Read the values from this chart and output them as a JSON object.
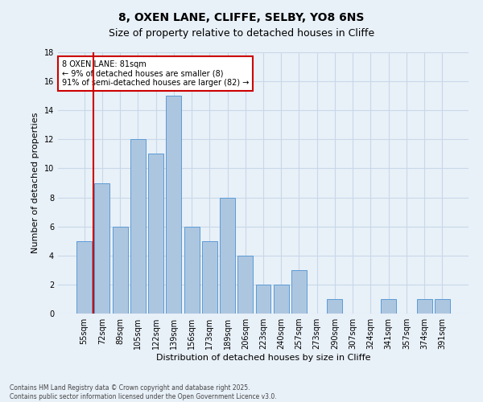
{
  "title_line1": "8, OXEN LANE, CLIFFE, SELBY, YO8 6NS",
  "title_line2": "Size of property relative to detached houses in Cliffe",
  "xlabel": "Distribution of detached houses by size in Cliffe",
  "ylabel": "Number of detached properties",
  "categories": [
    "55sqm",
    "72sqm",
    "89sqm",
    "105sqm",
    "122sqm",
    "139sqm",
    "156sqm",
    "173sqm",
    "189sqm",
    "206sqm",
    "223sqm",
    "240sqm",
    "257sqm",
    "273sqm",
    "290sqm",
    "307sqm",
    "324sqm",
    "341sqm",
    "357sqm",
    "374sqm",
    "391sqm"
  ],
  "values": [
    5,
    9,
    6,
    12,
    11,
    15,
    6,
    5,
    8,
    4,
    2,
    2,
    3,
    0,
    1,
    0,
    0,
    1,
    0,
    1,
    1
  ],
  "bar_color": "#adc6e0",
  "bar_edge_color": "#5b9bd5",
  "grid_color": "#c8d8e8",
  "background_color": "#e8f0f8",
  "vline_x_index": 1,
  "vline_color": "#cc0000",
  "annotation_text": "8 OXEN LANE: 81sqm\n← 9% of detached houses are smaller (8)\n91% of semi-detached houses are larger (82) →",
  "annotation_box_color": "#ffffff",
  "annotation_box_edge": "#cc0000",
  "ylim": [
    0,
    18
  ],
  "yticks": [
    0,
    2,
    4,
    6,
    8,
    10,
    12,
    14,
    16,
    18
  ],
  "footer_text": "Contains HM Land Registry data © Crown copyright and database right 2025.\nContains public sector information licensed under the Open Government Licence v3.0.",
  "title_fontsize": 10,
  "subtitle_fontsize": 9,
  "tick_fontsize": 7,
  "ylabel_fontsize": 8,
  "xlabel_fontsize": 8,
  "annotation_fontsize": 7
}
